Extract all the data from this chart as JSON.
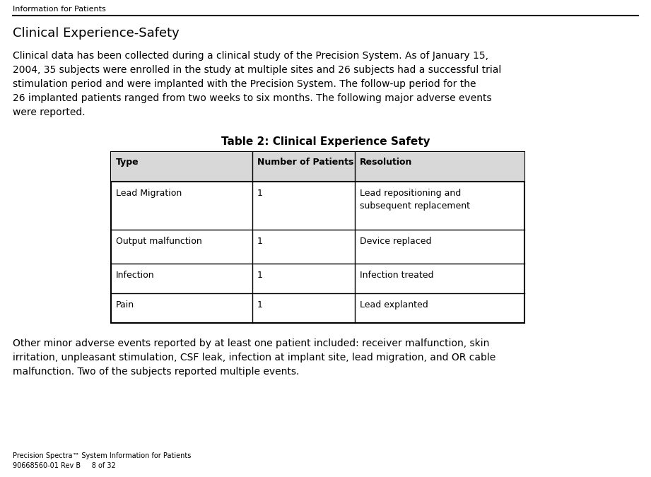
{
  "bg_color": "#ffffff",
  "header_text": "Information for Patients",
  "section_title": "Clinical Experience-Safety",
  "body_paragraph": [
    "Clinical data has been collected during a clinical study of the Precision System. As of January 15,",
    "2004, 35 subjects were enrolled in the study at multiple sites and 26 subjects had a successful trial",
    "stimulation period and were implanted with the Precision System. The follow-up period for the",
    "26 implanted patients ranged from two weeks to six months. The following major adverse events",
    "were reported."
  ],
  "table_title": "Table 2: Clinical Experience Safety",
  "table_headers": [
    "Type",
    "Number of Patients",
    "Resolution"
  ],
  "table_rows": [
    [
      "Lead Migration",
      "1",
      "Lead repositioning and\nsubsequent replacement"
    ],
    [
      "Output malfunction",
      "1",
      "Device replaced"
    ],
    [
      "Infection",
      "1",
      "Infection treated"
    ],
    [
      "Pain",
      "1",
      "Lead explanted"
    ]
  ],
  "footer_paragraph": [
    "Other minor adverse events reported by at least one patient included: receiver malfunction, skin",
    "irritation, unpleasant stimulation, CSF leak, infection at implant site, lead migration, and OR cable",
    "malfunction. Two of the subjects reported multiple events."
  ],
  "footer_text_line1": "Precision Spectra™ System Information for Patients",
  "footer_text_line2": "90668560-01 Rev B     8 of 32"
}
